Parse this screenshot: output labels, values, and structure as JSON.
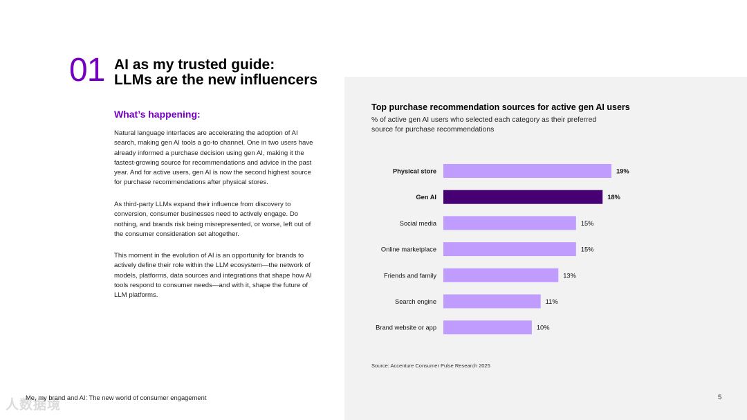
{
  "header": {
    "section_number": "01",
    "title_line1": "AI as my trusted guide:",
    "title_line2": "LLMs are the new influencers"
  },
  "content": {
    "subheading": "What’s happening:",
    "paragraphs": [
      "Natural language interfaces are accelerating the adoption of AI search, making gen AI tools a go-to channel. One in two users have already informed a purchase decision using gen AI, making it the fastest-growing source for recommendations and advice in the past year. And for active users, gen AI is now the second highest source for purchase recommendations after physical stores.",
      "As third-party LLMs expand their influence from discovery to conversion, consumer businesses need to actively engage. Do nothing, and brands risk being misrepresented, or worse, left out of the consumer consideration set altogether.",
      "This moment in the evolution of AI is an opportunity for brands to actively define their role within the LLM ecosystem—the network of models, platforms, data sources and integrations that shape how AI tools respond to consumer needs—and with it, shape the future of LLM platforms."
    ]
  },
  "chart_data": {
    "type": "bar",
    "orientation": "horizontal",
    "title": "Top purchase recommendation sources for active gen AI users",
    "subtitle": "% of active gen AI users who selected each category as their preferred source for purchase recommendations",
    "categories": [
      "Physical store",
      "Gen AI",
      "Social media",
      "Online marketplace",
      "Friends and family",
      "Search engine",
      "Brand website or app"
    ],
    "values": [
      19,
      18,
      15,
      15,
      13,
      11,
      10
    ],
    "value_labels": [
      "19%",
      "18%",
      "15%",
      "15%",
      "13%",
      "11%",
      "10%"
    ],
    "highlighted": [
      true,
      true,
      false,
      false,
      false,
      false,
      false
    ],
    "highlight_index": 1,
    "xlim": [
      0,
      19
    ],
    "grid": false,
    "source": "Source: Accenture Consumer Pulse Research 2025"
  },
  "colors": {
    "accent": "#7500c0",
    "bar": "#c09cff",
    "bar_highlight": "#460073",
    "panel_bg": "#f2f2f2"
  },
  "footer": {
    "text": "Me, my brand and AI: The new world of consumer engagement",
    "page_number": "5",
    "watermark": "人数据境"
  }
}
